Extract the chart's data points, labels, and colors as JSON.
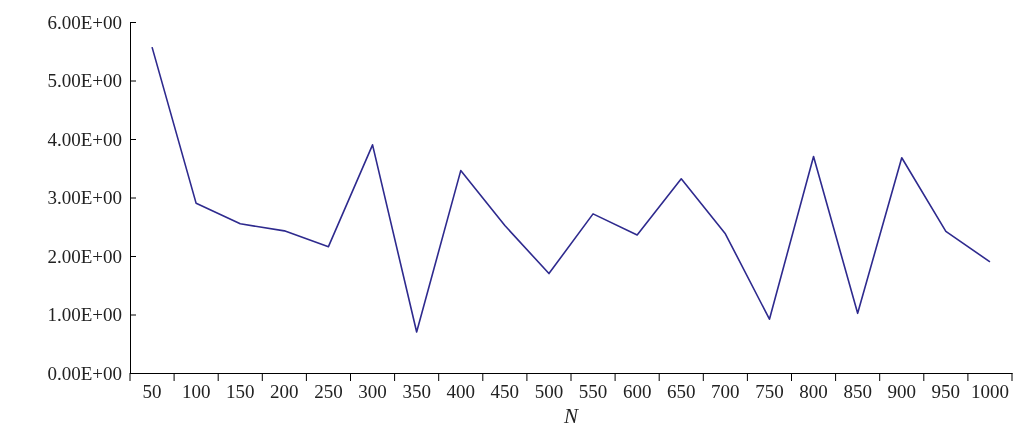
{
  "chart_data": {
    "type": "line",
    "xlabel": "N",
    "categories": [
      "50",
      "100",
      "150",
      "200",
      "250",
      "300",
      "350",
      "400",
      "450",
      "500",
      "550",
      "600",
      "650",
      "700",
      "750",
      "800",
      "850",
      "900",
      "950",
      "1000"
    ],
    "series": [
      {
        "color": "#2e2a8e",
        "values": [
          5.57,
          2.9,
          2.55,
          2.43,
          2.16,
          3.9,
          0.7,
          3.46,
          2.52,
          1.7,
          2.72,
          2.36,
          3.32,
          2.38,
          0.92,
          3.7,
          1.02,
          3.68,
          2.42,
          1.9
        ]
      }
    ],
    "ylim": [
      0,
      6
    ],
    "yticks": [
      {
        "value": 0,
        "label": "0.00E+00"
      },
      {
        "value": 1,
        "label": "1.00E+00"
      },
      {
        "value": 2,
        "label": "2.00E+00"
      },
      {
        "value": 3,
        "label": "3.00E+00"
      },
      {
        "value": 4,
        "label": "4.00E+00"
      },
      {
        "value": 5,
        "label": "5.00E+00"
      },
      {
        "value": 6,
        "label": "6.00E+00"
      }
    ],
    "grid": false,
    "marker": "none",
    "line_style": "solid"
  }
}
